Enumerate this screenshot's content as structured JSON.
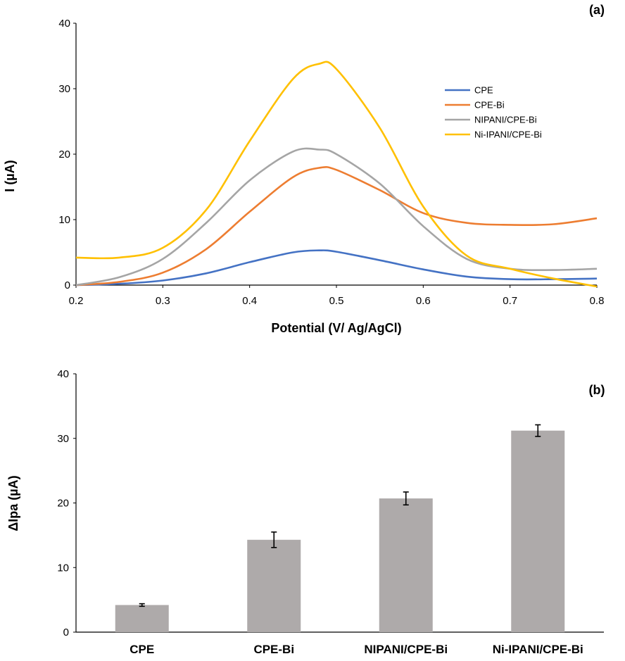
{
  "chart_data": [
    {
      "type": "line",
      "panel_label": "(a)",
      "xlabel": "Potential (V/ Ag/AgCl)",
      "ylabel": "I (µA)",
      "xlim": [
        0.2,
        0.8
      ],
      "ylim": [
        0,
        40
      ],
      "xticks": [
        "0.2",
        "0.3",
        "0.4",
        "0.5",
        "0.6",
        "0.7",
        "0.8"
      ],
      "yticks": [
        "0",
        "10",
        "20",
        "30",
        "40"
      ],
      "grid": false,
      "legend_position": "top-right",
      "x": [
        0.2,
        0.25,
        0.3,
        0.35,
        0.4,
        0.45,
        0.48,
        0.5,
        0.55,
        0.6,
        0.65,
        0.7,
        0.75,
        0.8
      ],
      "series": [
        {
          "name": "CPE",
          "color": "#4472c4",
          "values": [
            0,
            0.2,
            0.7,
            1.8,
            3.5,
            5.0,
            5.3,
            5.1,
            3.8,
            2.4,
            1.3,
            0.9,
            0.9,
            1.0
          ]
        },
        {
          "name": "CPE-Bi",
          "color": "#ed7d31",
          "values": [
            0,
            0.5,
            1.9,
            5.5,
            11.2,
            16.5,
            17.9,
            17.6,
            14.5,
            11.0,
            9.5,
            9.2,
            9.3,
            10.2
          ]
        },
        {
          "name": "NIPANI/CPE-Bi",
          "color": "#a5a5a5",
          "values": [
            0,
            1.2,
            4.0,
            9.5,
            16.0,
            20.4,
            20.7,
            20.0,
            15.5,
            9.0,
            4.0,
            2.5,
            2.3,
            2.5
          ]
        },
        {
          "name": "Ni-IPANI/CPE-Bi",
          "color": "#ffc000",
          "values": [
            4.2,
            4.2,
            5.7,
            11.5,
            22.0,
            31.5,
            33.8,
            33.0,
            24.0,
            12.0,
            4.5,
            2.5,
            1.0,
            -0.3
          ]
        }
      ]
    },
    {
      "type": "bar",
      "panel_label": "(b)",
      "xlabel": "",
      "ylabel": "ΔIpa (µA)",
      "ylim": [
        0,
        40
      ],
      "yticks": [
        "0",
        "10",
        "20",
        "30",
        "40"
      ],
      "grid": false,
      "categories": [
        "CPE",
        "CPE-Bi",
        "NIPANI/CPE-Bi",
        "Ni-IPANI/CPE-Bi"
      ],
      "values": [
        4.2,
        14.3,
        20.7,
        31.2
      ],
      "errors": [
        0.2,
        1.2,
        1.0,
        0.9
      ],
      "bar_color": "#aeaaaa"
    }
  ]
}
